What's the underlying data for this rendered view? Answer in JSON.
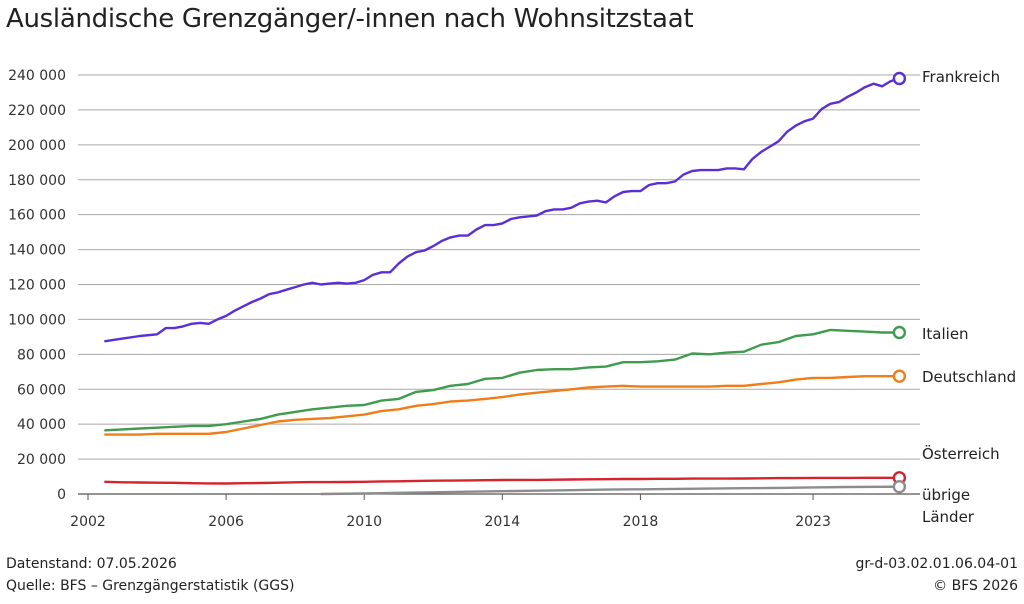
{
  "page": {
    "title": "Ausländische Grenzgänger/-innen nach Wohnsitzstaat",
    "footer_left_1": "Datenstand: 07.05.2026",
    "footer_left_2": "Quelle: BFS – Grenzgängerstatistik (GGS)",
    "footer_right_1": "gr-d-03.02.01.06.04-01",
    "footer_right_2": "© BFS 2026"
  },
  "chart_data": {
    "type": "line",
    "title": "Ausländische Grenzgänger/-innen nach Wohnsitzstaat",
    "xlabel": "",
    "ylabel": "",
    "xlim": [
      2002,
      2025.75
    ],
    "ylim": [
      0,
      240000
    ],
    "x_ticks": [
      2002,
      2006,
      2010,
      2014,
      2018,
      2023
    ],
    "x_tick_labels": [
      "2002",
      "2006",
      "2010",
      "2014",
      "2018",
      "2023"
    ],
    "y_ticks": [
      0,
      20000,
      40000,
      60000,
      80000,
      100000,
      120000,
      140000,
      160000,
      180000,
      200000,
      220000,
      240000
    ],
    "y_tick_labels": [
      "0",
      "20 000",
      "40 000",
      "60 000",
      "80 000",
      "100 000",
      "120 000",
      "140 000",
      "160 000",
      "180 000",
      "200 000",
      "220 000",
      "240 000"
    ],
    "grid": "horizontal",
    "legend": "end-of-line labels",
    "series": [
      {
        "name": "Frankreich",
        "color": "#5b2fd6",
        "x": [
          2002.5,
          2003.0,
          2003.5,
          2004.0,
          2004.25,
          2004.5,
          2004.75,
          2005.0,
          2005.25,
          2005.5,
          2005.75,
          2006.0,
          2006.25,
          2006.5,
          2006.75,
          2007.0,
          2007.25,
          2007.5,
          2007.75,
          2008.0,
          2008.25,
          2008.5,
          2008.75,
          2009.0,
          2009.25,
          2009.5,
          2009.75,
          2010.0,
          2010.25,
          2010.5,
          2010.75,
          2011.0,
          2011.25,
          2011.5,
          2011.75,
          2012.0,
          2012.25,
          2012.5,
          2012.75,
          2013.0,
          2013.25,
          2013.5,
          2013.75,
          2014.0,
          2014.25,
          2014.5,
          2014.75,
          2015.0,
          2015.25,
          2015.5,
          2015.75,
          2016.0,
          2016.25,
          2016.5,
          2016.75,
          2017.0,
          2017.25,
          2017.5,
          2017.75,
          2018.0,
          2018.25,
          2018.5,
          2018.75,
          2019.0,
          2019.25,
          2019.5,
          2019.75,
          2020.0,
          2020.25,
          2020.5,
          2020.75,
          2021.0,
          2021.25,
          2021.5,
          2021.75,
          2022.0,
          2022.25,
          2022.5,
          2022.75,
          2023.0,
          2023.25,
          2023.5,
          2023.75,
          2024.0,
          2024.25,
          2024.5,
          2024.75,
          2025.0,
          2025.25,
          2025.5
        ],
        "values": [
          87500,
          89000,
          90500,
          91500,
          95000,
          95000,
          96000,
          97500,
          98000,
          97500,
          100000,
          102000,
          105000,
          107500,
          110000,
          112000,
          114500,
          115500,
          117000,
          118500,
          120000,
          121000,
          120000,
          120500,
          121000,
          120500,
          121000,
          122500,
          125500,
          127000,
          127000,
          132000,
          136000,
          138500,
          139500,
          142000,
          145000,
          147000,
          148000,
          148000,
          151500,
          154000,
          154000,
          155000,
          157500,
          158500,
          159000,
          159500,
          162000,
          163000,
          163000,
          164000,
          166500,
          167500,
          168000,
          167000,
          170500,
          173000,
          173500,
          173500,
          177000,
          178000,
          178000,
          179000,
          183000,
          185000,
          185500,
          185500,
          185500,
          186500,
          186500,
          186000,
          192000,
          196000,
          199000,
          202000,
          207500,
          211000,
          213500,
          215000,
          220500,
          223500,
          224500,
          227500,
          230000,
          233000,
          235000,
          233500,
          236500,
          238000
        ]
      },
      {
        "name": "Italien",
        "color": "#3f9c4f",
        "x": [
          2002.5,
          2003.0,
          2003.5,
          2004.0,
          2004.5,
          2005.0,
          2005.5,
          2006.0,
          2006.5,
          2007.0,
          2007.5,
          2008.0,
          2008.5,
          2009.0,
          2009.5,
          2010.0,
          2010.5,
          2011.0,
          2011.5,
          2012.0,
          2012.5,
          2013.0,
          2013.5,
          2014.0,
          2014.5,
          2015.0,
          2015.5,
          2016.0,
          2016.5,
          2017.0,
          2017.5,
          2018.0,
          2018.5,
          2019.0,
          2019.5,
          2020.0,
          2020.5,
          2021.0,
          2021.5,
          2022.0,
          2022.5,
          2023.0,
          2023.5,
          2024.0,
          2024.5,
          2025.0,
          2025.5
        ],
        "values": [
          36500,
          37000,
          37500,
          38000,
          38500,
          39000,
          39000,
          40000,
          41500,
          43000,
          45500,
          47000,
          48500,
          49500,
          50500,
          51000,
          53500,
          54500,
          58500,
          59500,
          62000,
          63000,
          66000,
          66500,
          69500,
          71000,
          71500,
          71500,
          72500,
          73000,
          75500,
          75500,
          76000,
          77000,
          80500,
          80000,
          81000,
          81500,
          85500,
          87000,
          90500,
          91500,
          94000,
          93500,
          93000,
          92500,
          92500
        ]
      },
      {
        "name": "Deutschland",
        "color": "#f07d18",
        "x": [
          2002.5,
          2003.0,
          2003.5,
          2004.0,
          2004.5,
          2005.0,
          2005.5,
          2006.0,
          2006.5,
          2007.0,
          2007.5,
          2008.0,
          2008.5,
          2009.0,
          2009.5,
          2010.0,
          2010.5,
          2011.0,
          2011.5,
          2012.0,
          2012.5,
          2013.0,
          2013.5,
          2014.0,
          2014.5,
          2015.0,
          2015.5,
          2016.0,
          2016.5,
          2017.0,
          2017.5,
          2018.0,
          2018.5,
          2019.0,
          2019.5,
          2020.0,
          2020.5,
          2021.0,
          2021.5,
          2022.0,
          2022.5,
          2023.0,
          2023.5,
          2024.0,
          2024.5,
          2025.0,
          2025.5
        ],
        "values": [
          34000,
          34000,
          34000,
          34500,
          34500,
          34500,
          34500,
          35500,
          37500,
          39500,
          41500,
          42500,
          43000,
          43500,
          44500,
          45500,
          47500,
          48500,
          50500,
          51500,
          53000,
          53500,
          54500,
          55500,
          57000,
          58000,
          59000,
          60000,
          61000,
          61500,
          62000,
          61500,
          61500,
          61500,
          61500,
          61500,
          62000,
          62000,
          63000,
          64000,
          65500,
          66500,
          66500,
          67000,
          67500,
          67500,
          67500
        ]
      },
      {
        "name": "Österreich",
        "color": "#d6242f",
        "x": [
          2002.5,
          2003.0,
          2003.5,
          2004.0,
          2004.5,
          2005.0,
          2005.5,
          2006.0,
          2006.5,
          2007.0,
          2007.5,
          2008.0,
          2008.5,
          2009.0,
          2009.5,
          2010.0,
          2010.5,
          2011.0,
          2011.5,
          2012.0,
          2012.5,
          2013.0,
          2013.5,
          2014.0,
          2014.5,
          2015.0,
          2015.5,
          2016.0,
          2016.5,
          2017.0,
          2017.5,
          2018.0,
          2018.5,
          2019.0,
          2019.5,
          2020.0,
          2020.5,
          2021.0,
          2021.5,
          2022.0,
          2022.5,
          2023.0,
          2023.5,
          2024.0,
          2024.5,
          2025.0,
          2025.5
        ],
        "values": [
          7000,
          6700,
          6600,
          6500,
          6400,
          6200,
          6100,
          6000,
          6200,
          6300,
          6500,
          6700,
          6800,
          6800,
          6900,
          7000,
          7200,
          7300,
          7500,
          7600,
          7700,
          7800,
          7900,
          8000,
          8100,
          8100,
          8200,
          8300,
          8400,
          8500,
          8600,
          8600,
          8700,
          8700,
          8800,
          8800,
          8800,
          8900,
          9000,
          9100,
          9100,
          9200,
          9200,
          9200,
          9300,
          9300,
          9300
        ]
      },
      {
        "name": "übrige Länder",
        "color": "#8c8c8c",
        "x": [
          2008.75,
          2010.0,
          2011.0,
          2012.0,
          2013.0,
          2014.0,
          2015.0,
          2016.0,
          2017.0,
          2018.0,
          2019.0,
          2020.0,
          2021.0,
          2022.0,
          2023.0,
          2024.0,
          2025.0,
          2025.5
        ],
        "values": [
          0,
          300,
          700,
          1000,
          1300,
          1600,
          1900,
          2200,
          2500,
          2700,
          2900,
          3100,
          3300,
          3500,
          3800,
          4000,
          4100,
          4200
        ]
      }
    ],
    "end_labels": [
      {
        "series": "Frankreich",
        "lines": [
          "Frankreich"
        ]
      },
      {
        "series": "Italien",
        "lines": [
          "Italien"
        ]
      },
      {
        "series": "Deutschland",
        "lines": [
          "Deutschland"
        ]
      },
      {
        "series": "Österreich",
        "lines": [
          "Österreich"
        ]
      },
      {
        "series": "übrige Länder",
        "lines": [
          "übrige",
          "Länder"
        ]
      }
    ]
  }
}
